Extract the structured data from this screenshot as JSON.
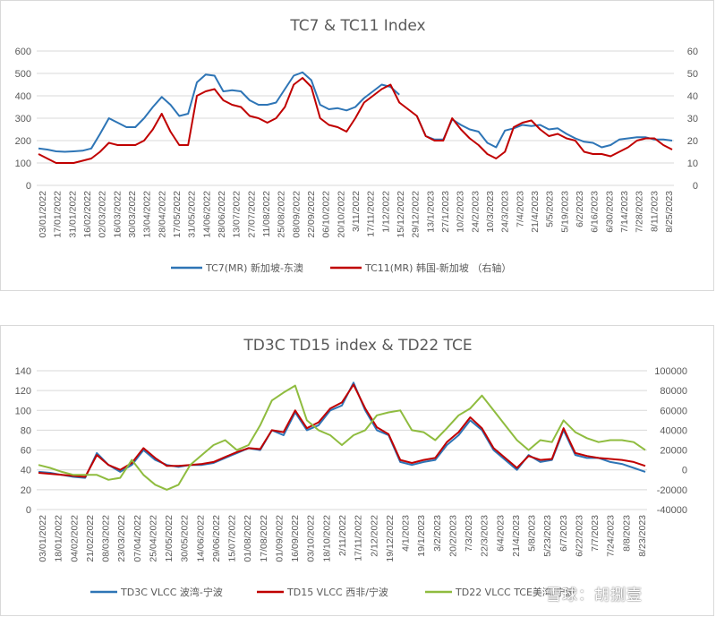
{
  "chart_data": [
    {
      "type": "line",
      "title": "TC7 & TC11 Index",
      "ylim": [
        0,
        600
      ],
      "y_ticks": [
        0,
        100,
        200,
        300,
        400,
        500,
        600
      ],
      "y2lim": [
        0,
        60
      ],
      "y2_ticks": [
        0,
        10,
        20,
        30,
        40,
        50,
        60
      ],
      "grid": true,
      "legend_position": "bottom",
      "x_tick_labels": [
        "03/01/2022",
        "17/01/2022",
        "31/01/2022",
        "16/02/2022",
        "02/03/2022",
        "16/03/2022",
        "30/03/2022",
        "13/04/2022",
        "28/04/2022",
        "17/05/2022",
        "31/05/2022",
        "14/06/2022",
        "28/06/2022",
        "13/07/2022",
        "27/07/2022",
        "11/08/2022",
        "25/08/2022",
        "08/09/2022",
        "22/09/2022",
        "06/10/2022",
        "20/10/2022",
        "3/11/2022",
        "17/11/2022",
        "1/12/2022",
        "15/12/2022",
        "29/12/2022",
        "13/1/2023",
        "27/1/2023",
        "10/2/2023",
        "24/2/2023",
        "10/3/2023",
        "24/3/2023",
        "7/4/2023",
        "21/4/2023",
        "5/5/2023",
        "5/19/2023",
        "6/2/2023",
        "6/16/2023",
        "6/30/2023",
        "7/14/2023",
        "7/28/2023",
        "8/11/2023",
        "8/25/2023"
      ],
      "series": [
        {
          "name": "TC7(MR) 新加坡-东澳",
          "axis": "left",
          "color": "#2e75b6",
          "values": [
            165,
            160,
            152,
            150,
            152,
            155,
            165,
            230,
            300,
            280,
            260,
            260,
            300,
            350,
            395,
            360,
            310,
            320,
            460,
            495,
            490,
            420,
            425,
            420,
            380,
            360,
            360,
            370,
            430,
            490,
            505,
            470,
            360,
            340,
            345,
            335,
            350,
            390,
            420,
            450,
            440,
            405,
            null,
            310,
            220,
            205,
            205,
            295,
            270,
            250,
            240,
            190,
            170,
            245,
            255,
            270,
            265,
            270,
            250,
            255,
            230,
            210,
            195,
            190,
            170,
            180,
            205,
            210,
            215,
            215,
            205,
            205,
            200
          ]
        },
        {
          "name": "TC11(MR) 韩国-新加坡    （右轴）",
          "axis": "right",
          "color": "#c00000",
          "values": [
            14,
            12,
            10,
            10,
            10,
            11,
            12,
            15,
            19,
            18,
            18,
            18,
            20,
            25,
            32,
            24,
            18,
            18,
            40,
            42,
            43,
            38,
            36,
            35,
            31,
            30,
            28,
            30,
            35,
            45,
            48,
            44,
            30,
            27,
            26,
            24,
            30,
            37,
            40,
            43,
            45,
            37,
            34,
            31,
            22,
            20,
            20,
            30,
            25,
            21,
            18,
            14,
            12,
            15,
            26,
            28,
            29,
            25,
            22,
            23,
            21,
            20,
            15,
            14,
            14,
            13,
            15,
            17,
            20,
            21,
            21,
            18,
            16
          ]
        }
      ]
    },
    {
      "type": "line",
      "title": "TD3C TD15 index & TD22 TCE",
      "ylim": [
        0,
        140
      ],
      "y_ticks": [
        0,
        20,
        40,
        60,
        80,
        100,
        120,
        140
      ],
      "y2lim": [
        -40000,
        100000
      ],
      "y2_ticks": [
        -40000,
        -20000,
        0,
        20000,
        40000,
        60000,
        80000,
        100000
      ],
      "grid": true,
      "legend_position": "bottom",
      "x_tick_labels": [
        "03/01/2022",
        "18/01/2022",
        "04/02/2022",
        "21/02/2022",
        "08/03/2022",
        "23/03/2022",
        "07/04/2022",
        "25/04/2022",
        "12/05/2022",
        "30/05/2022",
        "14/06/2022",
        "29/06/2022",
        "15/07/2022",
        "01/08/2022",
        "17/08/2022",
        "01/09/2022",
        "16/09/2022",
        "03/10/2022",
        "18/10/2022",
        "2/11/2022",
        "17/11/2022",
        "2/12/2022",
        "19/12/2022",
        "4/1/2023",
        "19/1/2023",
        "3/2/2023",
        "20/2/2023",
        "7/3/2023",
        "22/3/2023",
        "6/4/2023",
        "21/4/2023",
        "5/8/2023",
        "5/23/2023",
        "6/7/2023",
        "6/22/2023",
        "7/7/2023",
        "7/24/2023",
        "8/8/2023",
        "8/23/2023"
      ],
      "series": [
        {
          "name": "TD3C VLCC 波湾-宁波",
          "axis": "left",
          "color": "#2e75b6",
          "values": [
            38,
            37,
            35,
            33,
            32,
            57,
            45,
            38,
            45,
            60,
            50,
            45,
            43,
            45,
            45,
            47,
            52,
            57,
            62,
            60,
            80,
            75,
            98,
            80,
            85,
            100,
            105,
            128,
            100,
            80,
            75,
            48,
            45,
            48,
            50,
            65,
            75,
            90,
            80,
            60,
            50,
            40,
            55,
            48,
            50,
            80,
            55,
            52,
            52,
            48,
            46,
            42,
            38
          ]
        },
        {
          "name": "TD15 VLCC 西非/宁波",
          "axis": "left",
          "color": "#c00000",
          "values": [
            37,
            36,
            35,
            34,
            33,
            55,
            45,
            40,
            47,
            62,
            52,
            44,
            44,
            45,
            46,
            48,
            53,
            58,
            62,
            61,
            80,
            78,
            100,
            82,
            88,
            102,
            108,
            126,
            102,
            83,
            76,
            50,
            47,
            50,
            52,
            68,
            78,
            93,
            82,
            62,
            52,
            42,
            54,
            50,
            51,
            82,
            57,
            54,
            52,
            51,
            50,
            48,
            44
          ]
        },
        {
          "name": "TD22 VLCC TCE美湾/宁波",
          "axis": "right",
          "color": "#8fbc3f",
          "values": [
            5000,
            2000,
            -2000,
            -5000,
            -5000,
            -5000,
            -10000,
            -8000,
            10000,
            -5000,
            -15000,
            -20000,
            -15000,
            5000,
            15000,
            25000,
            30000,
            20000,
            25000,
            45000,
            70000,
            78000,
            85000,
            50000,
            40000,
            35000,
            25000,
            35000,
            40000,
            55000,
            58000,
            60000,
            40000,
            38000,
            30000,
            42000,
            55000,
            62000,
            75000,
            60000,
            45000,
            30000,
            20000,
            30000,
            28000,
            50000,
            38000,
            32000,
            28000,
            30000,
            30000,
            28000,
            20000
          ]
        }
      ]
    }
  ],
  "watermark": "雪球：胡捌壹"
}
